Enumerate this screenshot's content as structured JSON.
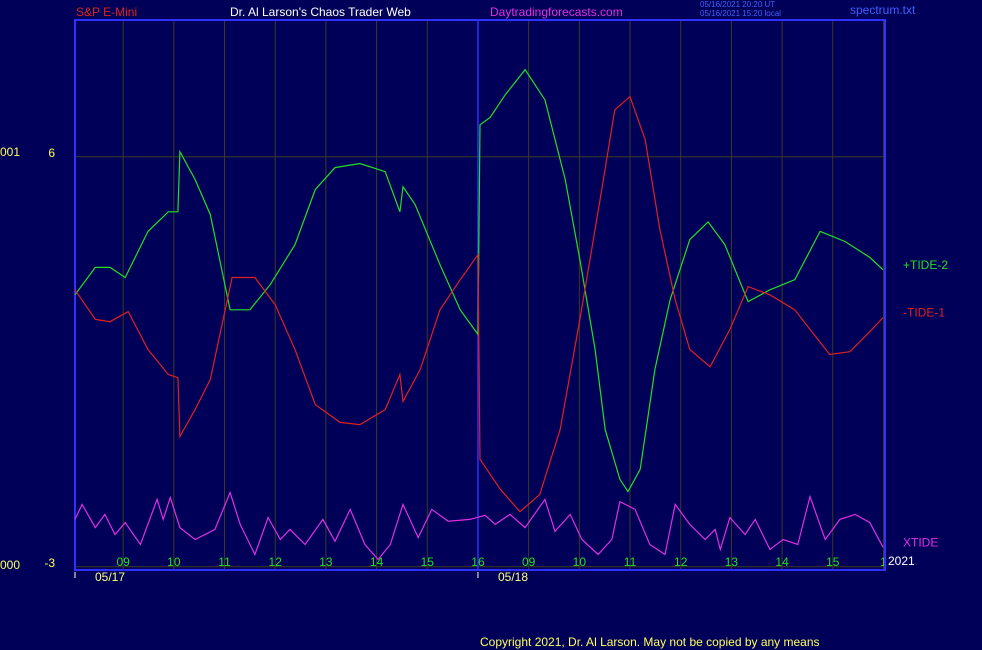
{
  "chart_data": {
    "type": "line",
    "header": {
      "instrument": "S&P E-Mini",
      "title": "Dr. Al Larson's Chaos Trader Web",
      "site": "Daytradingforecasts.com",
      "stamp_ut": "05/16/2021 20:20 UT",
      "stamp_local": "05/16/2021 15:20 local",
      "file": "spectrum.txt"
    },
    "left_axis_labels": [
      "001",
      "000"
    ],
    "year_label": "2021",
    "copyright": "Copyright 2021, Dr. Al Larson. May not be copied by any means",
    "xlim": [
      0.05,
      16.03
    ],
    "xticks": [
      {
        "value": 1,
        "label": "09"
      },
      {
        "value": 2,
        "label": "10"
      },
      {
        "value": 3,
        "label": "11"
      },
      {
        "value": 4,
        "label": "12"
      },
      {
        "value": 5,
        "label": "13"
      },
      {
        "value": 6,
        "label": "14"
      },
      {
        "value": 7,
        "label": "15"
      },
      {
        "value": 8,
        "label": "16"
      },
      {
        "value": 9,
        "label": "09"
      },
      {
        "value": 10,
        "label": "10"
      },
      {
        "value": 11,
        "label": "11"
      },
      {
        "value": 12,
        "label": "12"
      },
      {
        "value": 13,
        "label": "13"
      },
      {
        "value": 14,
        "label": "14"
      },
      {
        "value": 15,
        "label": "15"
      },
      {
        "value": 16,
        "label": "1"
      }
    ],
    "date_labels": [
      {
        "value": 0.05,
        "label": "05/17"
      },
      {
        "value": 8,
        "label": "05/18"
      }
    ],
    "ylim": [
      -3.07,
      9
    ],
    "yticks": [
      -3,
      6
    ],
    "grid": true,
    "series": [
      {
        "name": "+TIDE-2",
        "color": "#22e022",
        "x": [
          0.05,
          0.45,
          0.74,
          1.04,
          1.49,
          1.89,
          2.08,
          2.12,
          2.42,
          2.72,
          3.11,
          3.5,
          3.9,
          4.39,
          4.79,
          5.18,
          5.67,
          6.17,
          6.46,
          6.52,
          6.76,
          7.25,
          7.65,
          8.0,
          8.04,
          8.24,
          8.54,
          8.93,
          9.32,
          9.72,
          10.01,
          10.31,
          10.51,
          10.8,
          10.96,
          11.2,
          11.49,
          11.79,
          12.18,
          12.54,
          12.87,
          13.33,
          13.76,
          14.25,
          14.75,
          15.24,
          15.73,
          15.99
        ],
        "values": [
          2.97,
          3.57,
          3.57,
          3.35,
          4.36,
          4.79,
          4.79,
          6.11,
          5.5,
          4.73,
          2.64,
          2.64,
          3.19,
          4.07,
          5.28,
          5.76,
          5.85,
          5.67,
          4.79,
          5.34,
          4.95,
          3.63,
          2.64,
          2.1,
          6.7,
          6.86,
          7.36,
          7.91,
          7.25,
          5.5,
          3.74,
          1.77,
          0.01,
          -1.08,
          -1.35,
          -0.86,
          1.33,
          2.86,
          4.18,
          4.57,
          4.07,
          2.82,
          3.08,
          3.3,
          4.36,
          4.14,
          3.79,
          3.52
        ]
      },
      {
        "name": "-TIDE-1",
        "color": "#e02020",
        "x": [
          0.05,
          0.45,
          0.74,
          1.1,
          1.49,
          1.89,
          2.08,
          2.12,
          2.42,
          2.72,
          3.15,
          3.6,
          4.0,
          4.39,
          4.79,
          5.28,
          5.67,
          6.17,
          6.46,
          6.52,
          6.86,
          7.25,
          7.65,
          8.0,
          8.04,
          8.44,
          8.83,
          9.22,
          9.62,
          10.01,
          10.41,
          10.7,
          11.0,
          11.3,
          11.59,
          11.89,
          12.18,
          12.58,
          12.97,
          13.33,
          13.76,
          14.25,
          14.55,
          14.94,
          15.34,
          15.73,
          15.99
        ],
        "values": [
          3.08,
          2.43,
          2.38,
          2.6,
          1.77,
          1.22,
          1.15,
          -0.14,
          0.45,
          1.11,
          3.35,
          3.35,
          2.75,
          1.77,
          0.56,
          0.17,
          0.12,
          0.45,
          1.22,
          0.63,
          1.33,
          2.64,
          3.3,
          3.85,
          -0.64,
          -1.3,
          -1.79,
          -1.41,
          0.01,
          2.43,
          5.06,
          7.03,
          7.32,
          6.37,
          4.4,
          2.86,
          1.77,
          1.39,
          2.21,
          3.15,
          2.97,
          2.64,
          2.21,
          1.66,
          1.72,
          2.16,
          2.47
        ]
      },
      {
        "name": "XTIDE",
        "color": "#e030e0",
        "x": [
          0.05,
          0.19,
          0.45,
          0.64,
          0.84,
          1.04,
          1.34,
          1.67,
          1.79,
          1.93,
          2.12,
          2.42,
          2.81,
          3.11,
          3.31,
          3.6,
          3.86,
          4.1,
          4.29,
          4.59,
          4.94,
          5.18,
          5.48,
          5.77,
          6.03,
          6.27,
          6.52,
          6.82,
          7.09,
          7.41,
          7.84,
          8.14,
          8.34,
          8.63,
          8.93,
          9.32,
          9.52,
          9.82,
          10.05,
          10.37,
          10.64,
          10.8,
          11.1,
          11.39,
          11.69,
          11.89,
          12.18,
          12.48,
          12.68,
          12.78,
          12.97,
          13.27,
          13.47,
          13.76,
          14.02,
          14.31,
          14.55,
          14.85,
          15.14,
          15.44,
          15.73,
          15.99
        ],
        "values": [
          -1.96,
          -1.63,
          -2.14,
          -1.85,
          -2.29,
          -2.03,
          -2.51,
          -1.52,
          -1.96,
          -1.48,
          -2.14,
          -2.4,
          -2.18,
          -1.37,
          -2.07,
          -2.73,
          -1.92,
          -2.4,
          -2.18,
          -2.51,
          -1.96,
          -2.44,
          -1.74,
          -2.51,
          -2.84,
          -2.51,
          -1.63,
          -2.36,
          -1.74,
          -2.0,
          -1.96,
          -1.87,
          -2.07,
          -1.85,
          -2.14,
          -1.52,
          -2.22,
          -1.85,
          -2.4,
          -2.73,
          -2.4,
          -1.57,
          -1.74,
          -2.51,
          -2.73,
          -1.63,
          -2.07,
          -2.4,
          -2.18,
          -2.62,
          -1.92,
          -2.29,
          -1.96,
          -2.62,
          -2.4,
          -2.51,
          -1.46,
          -2.4,
          -1.96,
          -1.85,
          -2.03,
          -2.57
        ]
      }
    ]
  }
}
